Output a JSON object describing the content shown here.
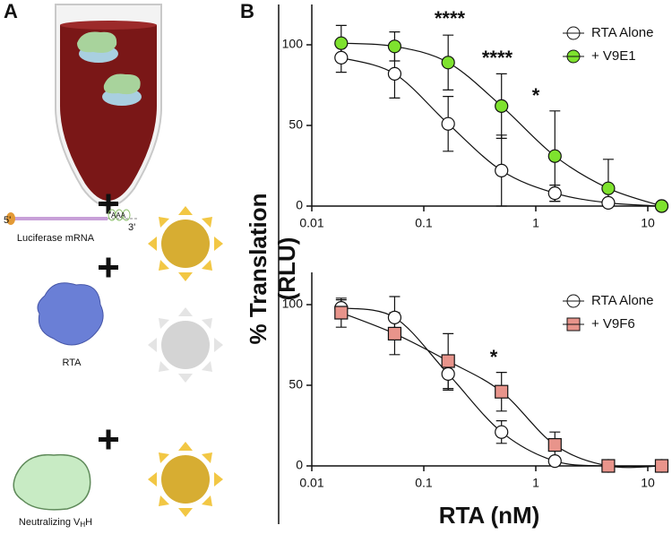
{
  "panel_labels": [
    "A",
    "B"
  ],
  "panel_a": {
    "mrna_label": "Luciferase mRNA",
    "five_prime": "5'",
    "three_prime": "3'",
    "poly_a": "AAA",
    "rta_label": "RTA",
    "vhh_label": [
      "Neutralizing V",
      "H",
      "H"
    ]
  },
  "y_label": [
    "% Translation",
    "(RLU)"
  ],
  "x_label": "RTA (nM)",
  "chart_data": [
    {
      "type": "scatter",
      "log_x": true,
      "legend": "upper right",
      "x": [
        0.0183,
        0.0549,
        0.165,
        0.494,
        1.48,
        4.44,
        13.3
      ],
      "xlim": [
        0.01,
        15
      ],
      "xticks": [
        0.01,
        0.1,
        1,
        10
      ],
      "ylim": [
        0,
        125
      ],
      "yticks": [
        0,
        50,
        100
      ],
      "series": [
        {
          "name": "RTA Alone",
          "color": "#ffffff",
          "marker": "circle",
          "values": [
            92,
            82,
            51,
            22,
            8,
            2,
            0
          ],
          "errors": [
            9,
            15,
            17,
            22,
            5,
            1,
            0
          ]
        },
        {
          "name": "+ V9E1",
          "color": "#7ee22e",
          "marker": "circle",
          "values": [
            101,
            99,
            89,
            62,
            31,
            11,
            0
          ],
          "errors": [
            11,
            9,
            17,
            20,
            28,
            18,
            0
          ]
        }
      ],
      "annotations": [
        "****",
        "****",
        "*"
      ]
    },
    {
      "type": "scatter",
      "log_x": true,
      "legend": "upper right",
      "x": [
        0.0183,
        0.0549,
        0.165,
        0.494,
        1.48,
        4.44,
        13.3
      ],
      "xlim": [
        0.01,
        15
      ],
      "xticks": [
        0.01,
        0.1,
        1,
        10
      ],
      "ylim": [
        0,
        120
      ],
      "yticks": [
        0,
        50,
        100
      ],
      "series": [
        {
          "name": "RTA Alone",
          "color": "#ffffff",
          "marker": "circle",
          "values": [
            98,
            92,
            57,
            21,
            3,
            0,
            0
          ],
          "errors": [
            5,
            13,
            10,
            7,
            2,
            0,
            0
          ]
        },
        {
          "name": "+ V9F6",
          "color": "#e8948b",
          "marker": "square",
          "values": [
            95,
            82,
            65,
            46,
            13,
            0,
            0
          ],
          "errors": [
            9,
            13,
            17,
            12,
            8,
            0,
            0
          ]
        }
      ],
      "annotations": [
        "*"
      ]
    }
  ]
}
